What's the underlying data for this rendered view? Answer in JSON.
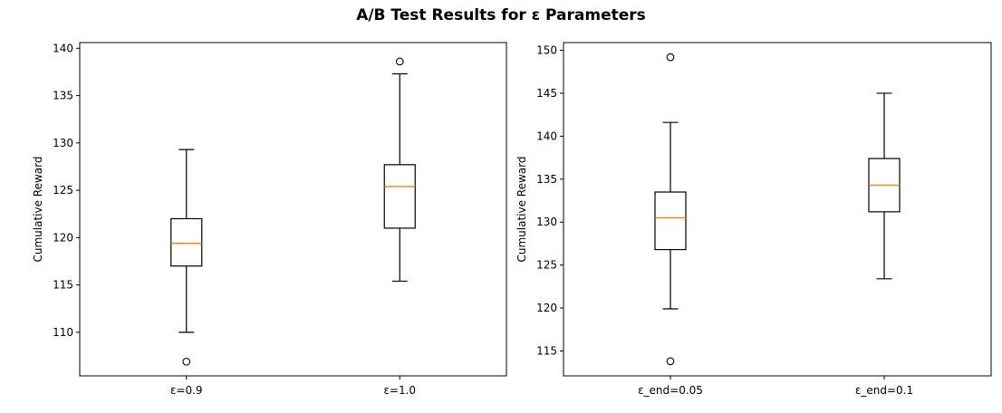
{
  "title": "A/B Test Results for ε Parameters",
  "chart_data": [
    {
      "type": "box",
      "ylabel": "Cumulative Reward",
      "ylim": [
        105.4,
        140.6
      ],
      "yticks": [
        110,
        115,
        120,
        125,
        130,
        135,
        140
      ],
      "categories": [
        "ε=0.9",
        "ε=1.0"
      ],
      "boxes": [
        {
          "category": "ε=0.9",
          "whisker_low": 110.0,
          "q1": 117.0,
          "median": 119.4,
          "q3": 122.0,
          "whisker_high": 129.3,
          "outliers": [
            106.9
          ]
        },
        {
          "category": "ε=1.0",
          "whisker_low": 115.4,
          "q1": 121.0,
          "median": 125.4,
          "q3": 127.7,
          "whisker_high": 137.3,
          "outliers": [
            138.6
          ]
        }
      ],
      "grid": false
    },
    {
      "type": "box",
      "ylabel": "Cumulative Reward",
      "ylim": [
        112.1,
        150.9
      ],
      "yticks": [
        115,
        120,
        125,
        130,
        135,
        140,
        145,
        150
      ],
      "categories": [
        "ε_end=0.05",
        "ε_end=0.1"
      ],
      "boxes": [
        {
          "category": "ε_end=0.05",
          "whisker_low": 119.9,
          "q1": 126.8,
          "median": 130.5,
          "q3": 133.5,
          "whisker_high": 141.6,
          "outliers": [
            149.2,
            113.8
          ]
        },
        {
          "category": "ε_end=0.1",
          "whisker_low": 123.4,
          "q1": 131.2,
          "median": 134.3,
          "q3": 137.4,
          "whisker_high": 145.0,
          "outliers": []
        }
      ],
      "grid": false
    }
  ],
  "colors": {
    "box": "#000000",
    "median": "#ff7f0e",
    "background": "#ffffff"
  }
}
